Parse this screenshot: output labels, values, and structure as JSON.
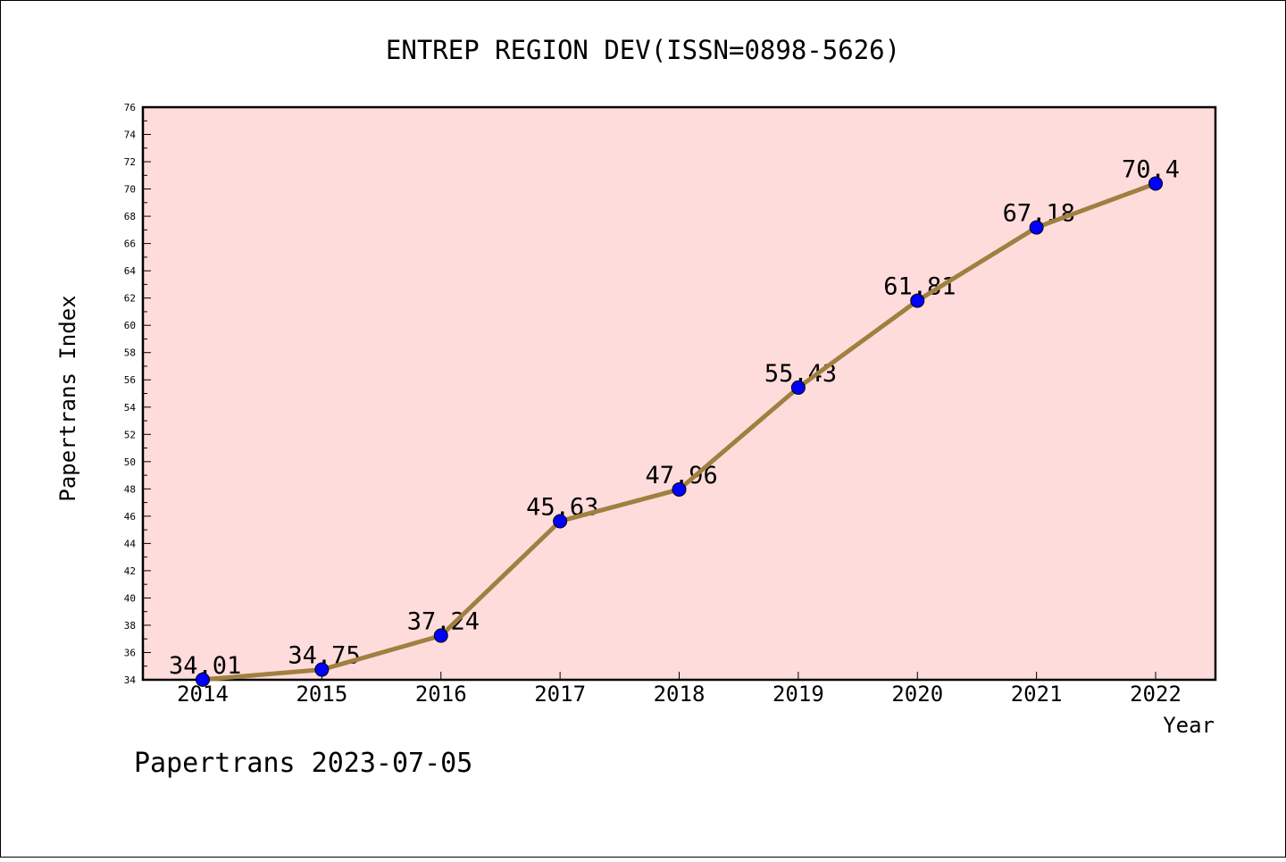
{
  "chart_data": {
    "type": "line",
    "title": "ENTREP REGION DEV(ISSN=0898-5626)",
    "xlabel": "Year",
    "ylabel": "Papertrans Index",
    "x": [
      "2014",
      "2015",
      "2016",
      "2017",
      "2018",
      "2019",
      "2020",
      "2021",
      "2022"
    ],
    "series": [
      {
        "values": [
          34.01,
          34.75,
          37.24,
          45.63,
          47.96,
          55.43,
          61.81,
          67.18,
          70.4
        ],
        "labels": [
          "34.01",
          "34.75",
          "37.24",
          "45.63",
          "47.96",
          "55.43",
          "61.81",
          "67.18",
          "70.4"
        ]
      }
    ],
    "ylim": [
      34,
      76
    ],
    "yticks": [
      "34",
      "36",
      "38",
      "40",
      "42",
      "44",
      "46",
      "48",
      "50",
      "52",
      "54",
      "56",
      "58",
      "60",
      "62",
      "64",
      "66",
      "68",
      "70",
      "72",
      "74",
      "76"
    ],
    "grid": false,
    "colors": {
      "plot_background": "#ffdcdc",
      "line": "#a08040",
      "marker": "#0000ff"
    }
  },
  "footer": "Papertrans 2023-07-05"
}
